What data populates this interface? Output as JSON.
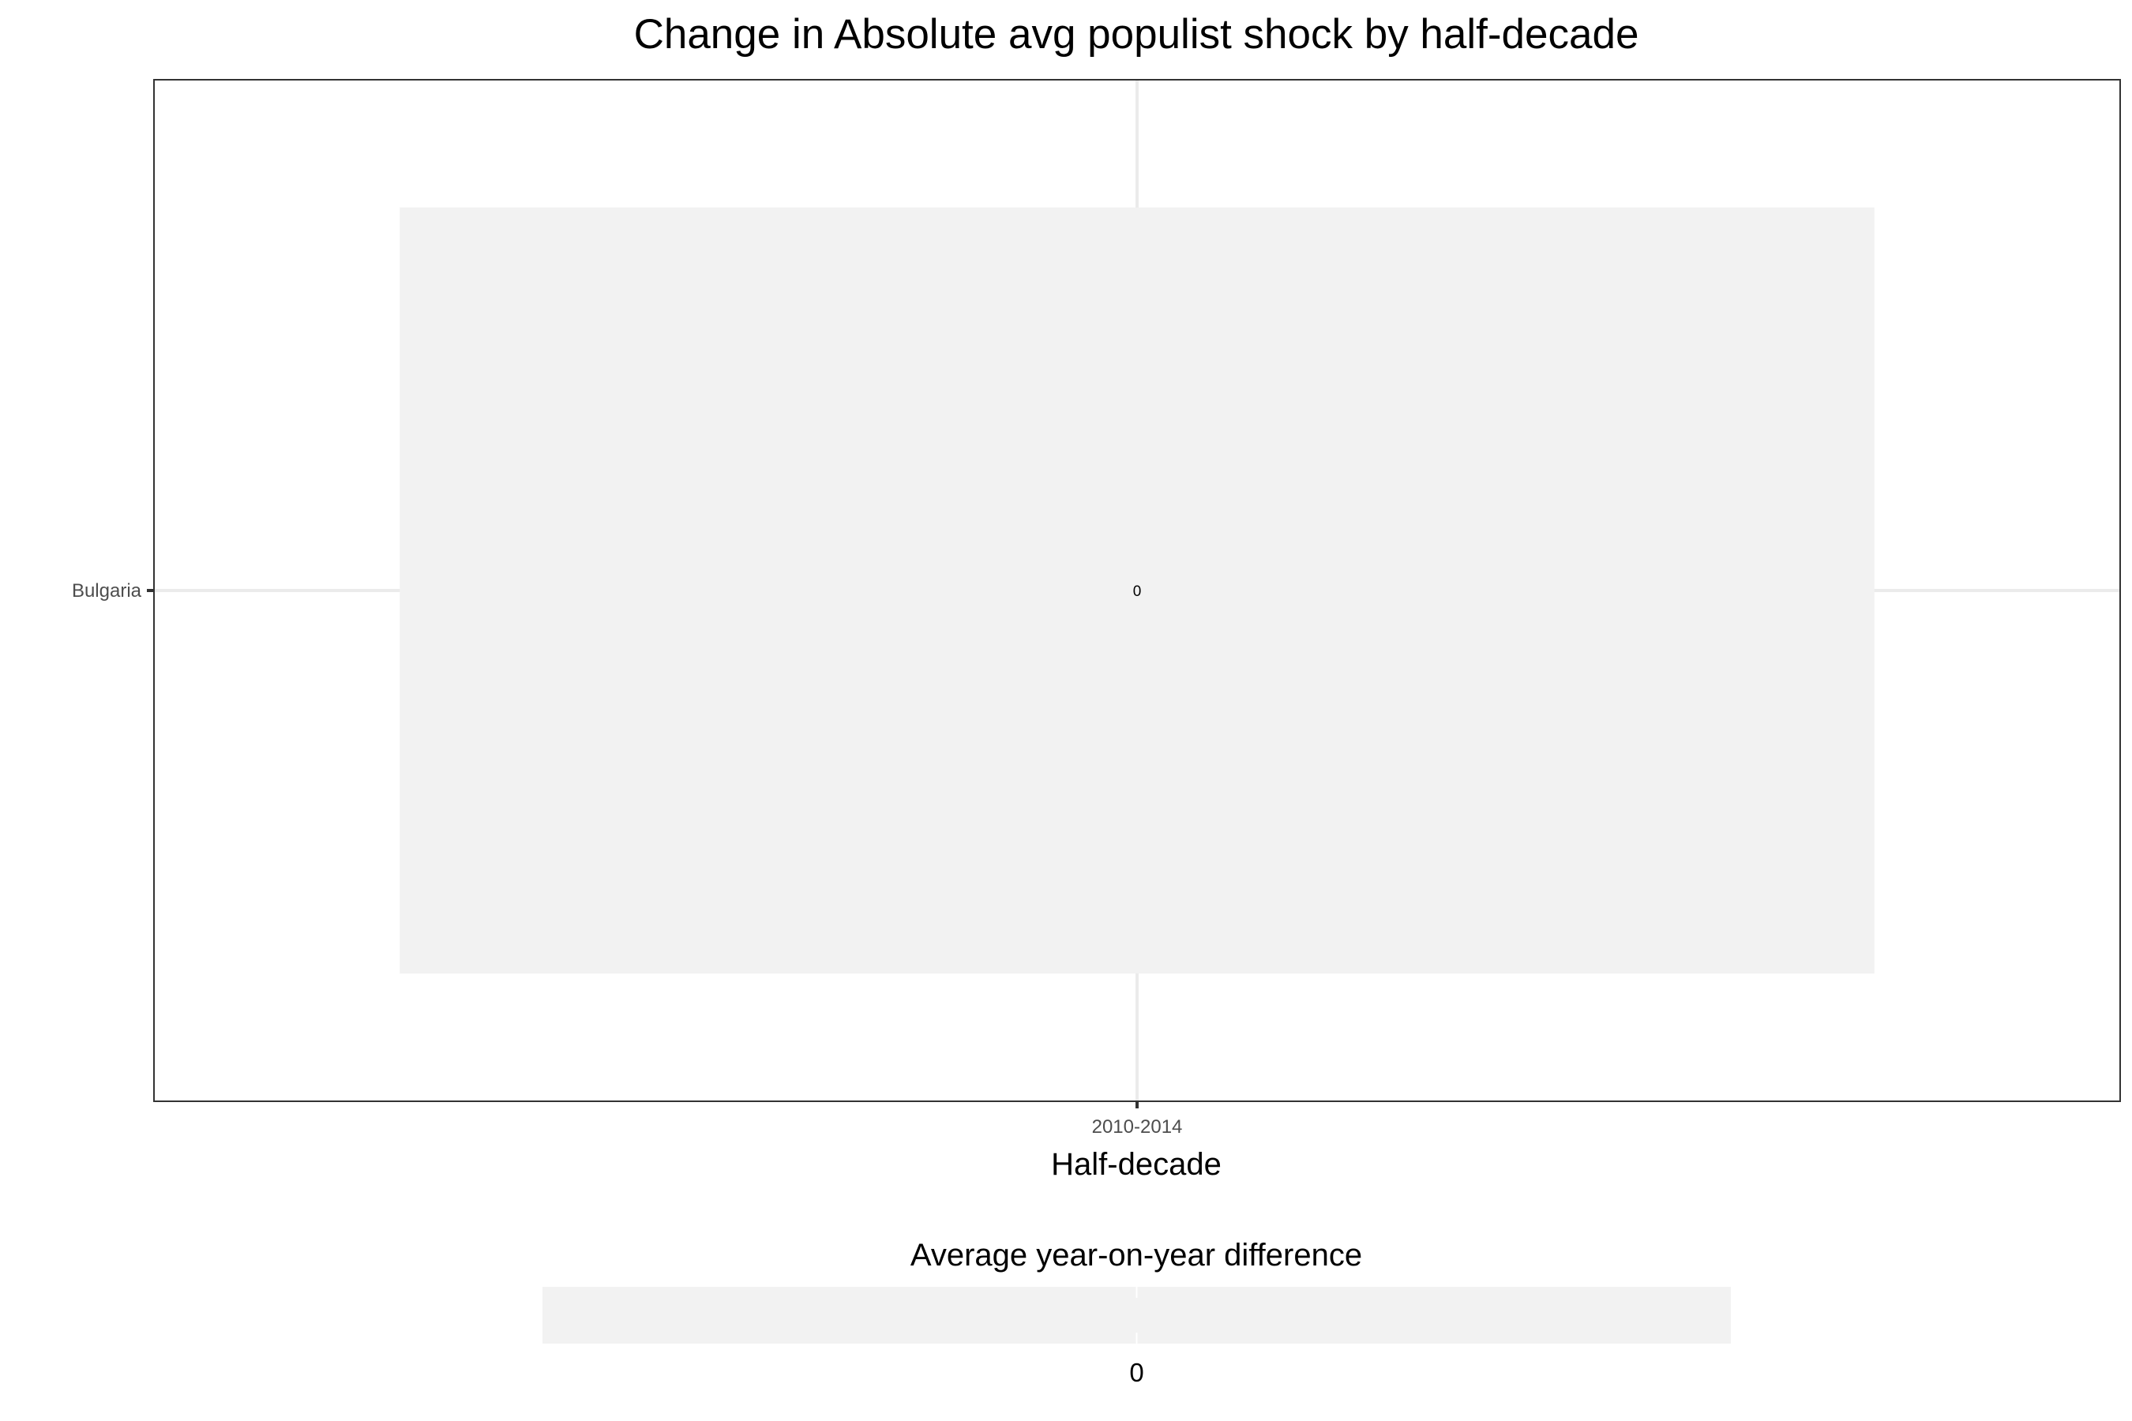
{
  "chart_data": {
    "type": "heatmap",
    "title": "Change in Absolute avg populist shock by half-decade",
    "xlabel": "Half-decade",
    "ylabel": "",
    "x_categories": [
      "2010-2014"
    ],
    "y_categories": [
      "Bulgaria"
    ],
    "cells": [
      {
        "x": "2010-2014",
        "y": "Bulgaria",
        "value": 0,
        "label": "0"
      }
    ],
    "grid": true,
    "legend": {
      "title": "Average year-on-year difference",
      "position": "bottom",
      "breaks": [
        0
      ],
      "labels": [
        "0"
      ]
    },
    "colors": {
      "tile": "#f2f2f2",
      "grid": "#ebebeb",
      "panel_border": "#333333",
      "tick": "#333333"
    }
  }
}
